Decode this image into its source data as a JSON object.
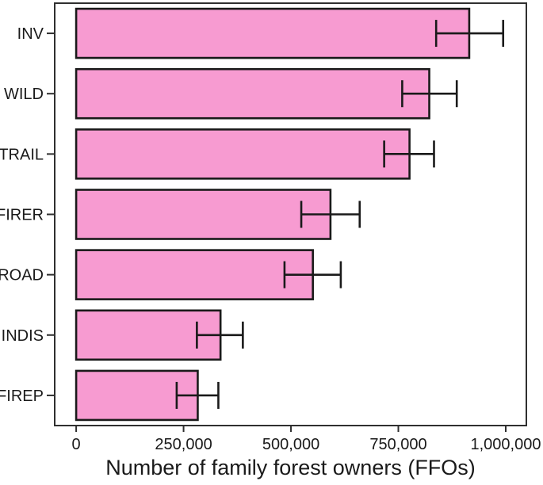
{
  "chart_data": {
    "type": "bar",
    "orientation": "horizontal",
    "title": "",
    "xlabel": "Number of family forest owners (FFOs)",
    "ylabel": "",
    "categories": [
      "INV",
      "WILD",
      "TRAIL",
      "FIRER",
      "ROAD",
      "INDIS",
      "FIREP"
    ],
    "values": [
      915000,
      822000,
      776000,
      592000,
      551000,
      336000,
      283000
    ],
    "error_low": [
      838000,
      759000,
      717000,
      524000,
      485000,
      281000,
      234000
    ],
    "error_high": [
      994000,
      886000,
      833000,
      660000,
      616000,
      388000,
      331000
    ],
    "xlim": [
      -50000,
      1048000
    ],
    "xticks": [
      0,
      250000,
      500000,
      750000,
      1000000
    ],
    "xtick_labels": [
      "0",
      "250,000",
      "500,000",
      "750,000",
      "1,000,000"
    ],
    "grid": false,
    "legend": "none",
    "panel_border": true,
    "colors": {
      "bar_fill": "#f79bd1",
      "bar_border": "#1a1a1a",
      "error_bar": "#1a1a1a",
      "panel_border": "#2f2f2f",
      "tick": "#2f2f2f",
      "text": "#1a1a1a",
      "background": "#ffffff"
    }
  }
}
